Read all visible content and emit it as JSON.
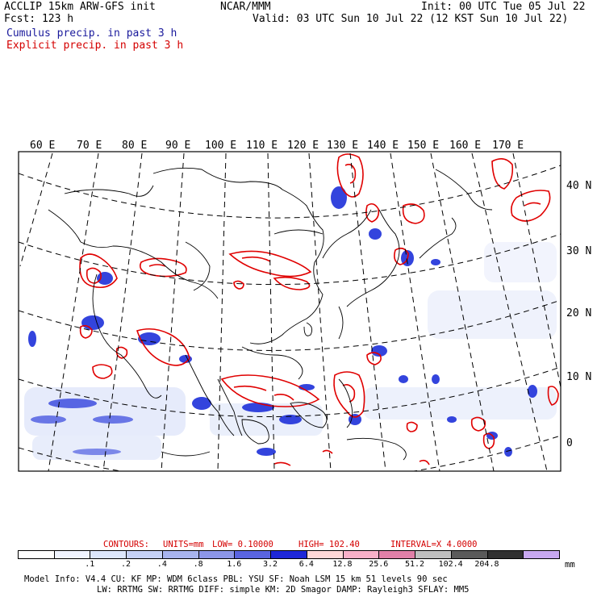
{
  "header": {
    "model": "ACCLIP 15km ARW-GFS init",
    "center": "NCAR/MMM",
    "init": "Init: 00 UTC Tue 05 Jul 22",
    "fcst": "Fcst:  123 h",
    "valid": "Valid: 03 UTC Sun 10 Jul 22 (12 KST Sun 10 Jul 22)",
    "legend_cumulus": "Cumulus precip. in past 3 h",
    "legend_explicit": "Explicit precip. in past 3 h"
  },
  "map": {
    "lon_labels": [
      "60 E",
      "70 E",
      "80 E",
      "90 E",
      "100 E",
      "110 E",
      "120 E",
      "130 E",
      "140 E",
      "150 E",
      "160 E",
      "170 E"
    ],
    "lat_labels": [
      "40 N",
      "30 N",
      "20 N",
      "10 N",
      "0"
    ],
    "colors": {
      "cumulus": "#3344dd",
      "explicit": "#e00000",
      "coast": "#000000",
      "grid": "#000000"
    }
  },
  "contours": {
    "label": "CONTOURS:",
    "units": "UNITS=mm",
    "low": "LOW= 0.10000",
    "high": "HIGH=  102.40",
    "interval": "INTERVAL=X  4.0000"
  },
  "colorbar": {
    "colors": [
      "#ffffff",
      "#f0f4ff",
      "#dce6fb",
      "#c6d2f6",
      "#a8b4ee",
      "#8c96e8",
      "#5a64e0",
      "#1e28d8",
      "#ffd8d8",
      "#f8b0c8",
      "#e080a8",
      "#bfbfbf",
      "#5a5a5a",
      "#303030",
      "#c8a8f0"
    ],
    "labels": [
      ".1",
      ".2",
      ".4",
      ".8",
      "1.6",
      "3.2",
      "6.4",
      "12.8",
      "25.6",
      "51.2",
      "102.4",
      "204.8"
    ],
    "unit": "mm"
  },
  "footer": {
    "line1": "Model Info: V4.4      CU: KF       MP: WDM 6class  PBL: YSU      SF: Noah LSM    15 km   51 levels   90 sec",
    "line2": "LW: RRTMG    SW: RRTMG  DIFF: simple KM: 2D Smagor DAMP: Rayleigh3  SFLAY: MM5"
  }
}
